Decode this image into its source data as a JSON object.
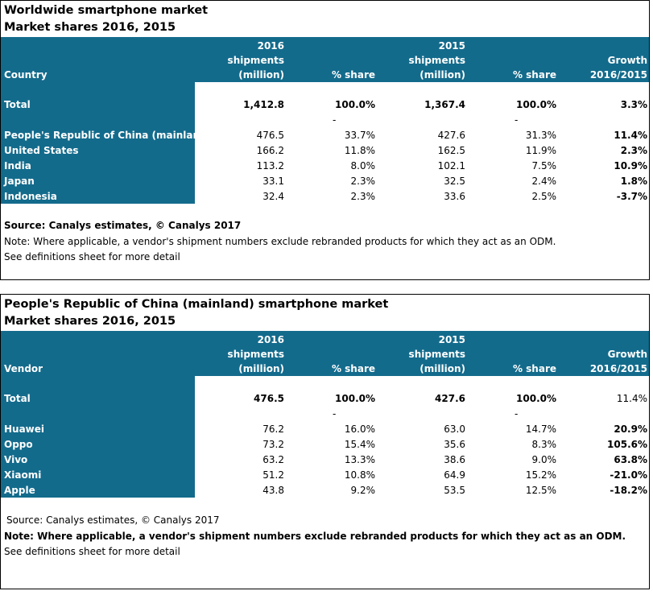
{
  "tables": [
    {
      "title": "Worldwide smartphone market",
      "subtitle": "Market shares 2016, 2015",
      "headers": {
        "label": "Country",
        "col2016": [
          "2016",
          "shipments",
          "(million)"
        ],
        "share2016": "% share",
        "col2015": [
          "2015",
          "shipments",
          "(million)"
        ],
        "share2015": "% share",
        "growth": [
          "Growth",
          "2016/2015"
        ]
      },
      "total": {
        "label": "Total",
        "s2016": "1,412.8",
        "p2016": "100.0%",
        "s2015": "1,367.4",
        "p2015": "100.0%",
        "growth": "3.3%"
      },
      "dash_2016": "-",
      "dash_2015": "-",
      "rows": [
        {
          "label": "People's Republic of China (mainland)",
          "s2016": "476.5",
          "p2016": "33.7%",
          "s2015": "427.6",
          "p2015": "31.3%",
          "growth": "11.4%"
        },
        {
          "label": "United States",
          "s2016": "166.2",
          "p2016": "11.8%",
          "s2015": "162.5",
          "p2015": "11.9%",
          "growth": "2.3%"
        },
        {
          "label": "India",
          "s2016": "113.2",
          "p2016": "8.0%",
          "s2015": "102.1",
          "p2015": "7.5%",
          "growth": "10.9%"
        },
        {
          "label": "Japan",
          "s2016": "33.1",
          "p2016": "2.3%",
          "s2015": "32.5",
          "p2015": "2.4%",
          "growth": "1.8%"
        },
        {
          "label": "Indonesia",
          "s2016": "32.4",
          "p2016": "2.3%",
          "s2015": "33.6",
          "p2015": "2.5%",
          "growth": "-3.7%"
        }
      ],
      "source": "Source: Canalys estimates, © Canalys 2017",
      "note": "Note: Where applicable, a vendor's shipment numbers exclude rebranded products for which they act as an ODM.",
      "definitions": "See definitions sheet for more detail"
    },
    {
      "title": "People's Republic of China (mainland) smartphone market",
      "subtitle": "Market shares 2016, 2015",
      "headers": {
        "label": "Vendor",
        "col2016": [
          "2016",
          "shipments",
          "(million)"
        ],
        "share2016": "% share",
        "col2015": [
          "2015",
          "shipments",
          "(million)"
        ],
        "share2015": "% share",
        "growth": [
          "Growth",
          "2016/2015"
        ]
      },
      "total": {
        "label": "Total",
        "s2016": "476.5",
        "p2016": "100.0%",
        "s2015": "427.6",
        "p2015": "100.0%",
        "growth": "11.4%"
      },
      "dash_2016": "-",
      "dash_2015": "-",
      "rows": [
        {
          "label": "Huawei",
          "s2016": "76.2",
          "p2016": "16.0%",
          "s2015": "63.0",
          "p2015": "14.7%",
          "growth": "20.9%"
        },
        {
          "label": "Oppo",
          "s2016": "73.2",
          "p2016": "15.4%",
          "s2015": "35.6",
          "p2015": "8.3%",
          "growth": "105.6%"
        },
        {
          "label": "Vivo",
          "s2016": "63.2",
          "p2016": "13.3%",
          "s2015": "38.6",
          "p2015": "9.0%",
          "growth": "63.8%"
        },
        {
          "label": "Xiaomi",
          "s2016": "51.2",
          "p2016": "10.8%",
          "s2015": "64.9",
          "p2015": "15.2%",
          "growth": "-21.0%"
        },
        {
          "label": "Apple",
          "s2016": "43.8",
          "p2016": "9.2%",
          "s2015": "53.5",
          "p2015": "12.5%",
          "growth": "-18.2%"
        }
      ],
      "source": "Source: Canalys estimates, © Canalys 2017",
      "note": "Note: Where applicable, a vendor's shipment numbers exclude rebranded products for which they act as an ODM.",
      "definitions": "See definitions sheet for more detail"
    }
  ],
  "colors": {
    "header_bg": "#136b8c",
    "header_text": "#ffffff"
  }
}
